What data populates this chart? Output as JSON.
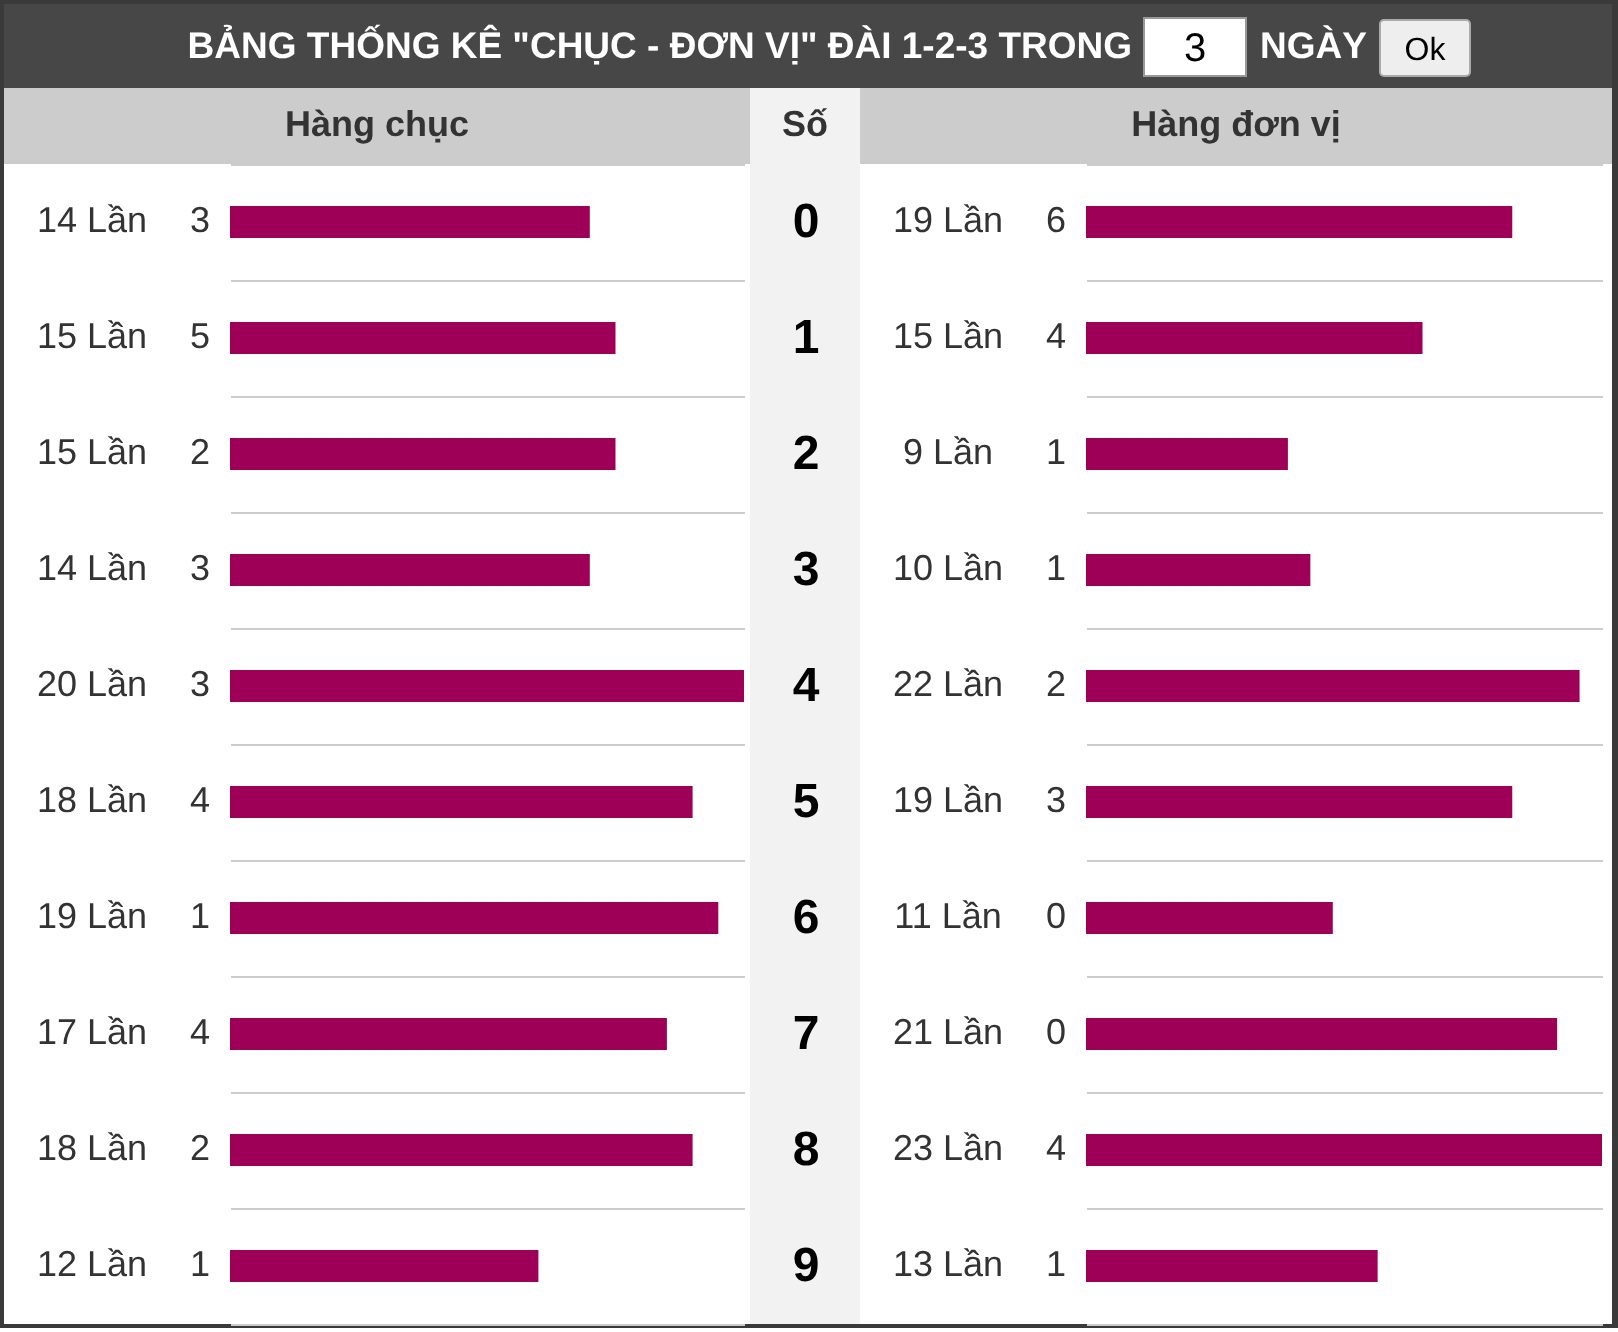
{
  "chart_data": [
    {
      "type": "other",
      "title": "BẢNG THỐNG KÊ \"CHỤC - ĐƠN VỊ\" ĐÀI 1-2-3 TRONG",
      "annotations": [
        "3",
        "NGÀY",
        "Ok"
      ]
    },
    {
      "type": "bar",
      "orientation": "horizontal",
      "title": "Hàng chục",
      "categories": [
        null,
        null,
        null,
        null,
        null,
        null,
        null,
        null,
        null,
        null
      ],
      "values": [
        14,
        15,
        15,
        14,
        20,
        18,
        19,
        17,
        18,
        12
      ],
      "value_labels": [
        "14 Lần",
        "15 Lần",
        "15 Lần",
        "14 Lần",
        "20 Lần",
        "18 Lần",
        "19 Lần",
        "17 Lần",
        "18 Lần",
        "12 Lần"
      ],
      "annotations": [
        "3",
        "5",
        "2",
        "3",
        "3",
        "4",
        "1",
        "4",
        "2",
        "1"
      ],
      "color": "#9e0057",
      "grid": "y",
      "tick_labels": false
    },
    {
      "type": "bar",
      "orientation": "horizontal",
      "title": "Hàng đơn vị",
      "ylabel": "Số",
      "categories": [
        "0",
        "1",
        "2",
        "3",
        "4",
        "5",
        "6",
        "7",
        "8",
        "9"
      ],
      "values": [
        19,
        15,
        9,
        10,
        22,
        19,
        11,
        21,
        23,
        13
      ],
      "value_labels": [
        "19 Lần",
        "15 Lần",
        "9 Lần",
        "10 Lần",
        "22 Lần",
        "19 Lần",
        "11 Lần",
        "21 Lần",
        "23 Lần",
        "13 Lần"
      ],
      "annotations": [
        "6",
        "4",
        "1",
        "1",
        "2",
        "3",
        "0",
        "0",
        "4",
        "1"
      ],
      "color": "#9e0057",
      "grid": "y",
      "tick_labels": "y"
    }
  ]
}
